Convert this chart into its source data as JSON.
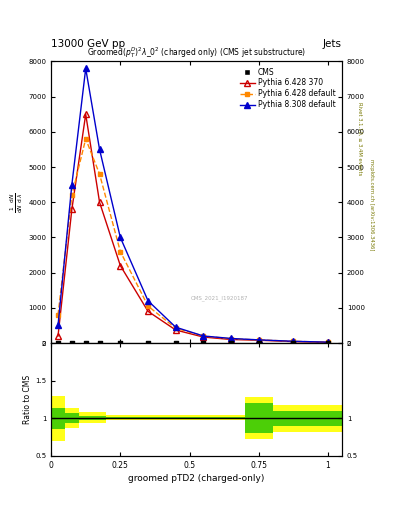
{
  "title_top": "13000 GeV pp",
  "title_right": "Jets",
  "plot_title": "Groomed$(p_T^D)^2\\lambda\\_0^2$ (charged only) (CMS jet substructure)",
  "xlabel": "groomed pTD2 (charged-only)",
  "right_label": "Rivet 3.1.10, ≥ 3.4M events",
  "right_label2": "mcplots.cern.ch [arXiv:1306.3436]",
  "watermark": "CMS_2021_I1920187",
  "p6_370_x": [
    0.025,
    0.075,
    0.125,
    0.175,
    0.25,
    0.35,
    0.45,
    0.55,
    0.65,
    0.75,
    0.875,
    1.0
  ],
  "p6_370_y": [
    200,
    3800,
    6500,
    4000,
    2200,
    900,
    370,
    170,
    100,
    80,
    40,
    20
  ],
  "p6_def_x": [
    0.025,
    0.075,
    0.125,
    0.175,
    0.25,
    0.35,
    0.45,
    0.55,
    0.65,
    0.75,
    0.875,
    1.0
  ],
  "p6_def_y": [
    800,
    4200,
    5800,
    4800,
    2600,
    1050,
    420,
    200,
    120,
    90,
    50,
    25
  ],
  "p8_def_x": [
    0.025,
    0.075,
    0.125,
    0.175,
    0.25,
    0.35,
    0.45,
    0.55,
    0.65,
    0.75,
    0.875,
    1.0
  ],
  "p8_def_y": [
    500,
    4500,
    7800,
    5500,
    3000,
    1200,
    450,
    200,
    130,
    90,
    50,
    25
  ],
  "cms_x": [
    0.025,
    0.075,
    0.125,
    0.175,
    0.25,
    0.35,
    0.45,
    0.55,
    0.65,
    0.75,
    0.875,
    1.0
  ],
  "cms_y": [
    0,
    0,
    0,
    0,
    0,
    0,
    0,
    0,
    0,
    0,
    0,
    0
  ],
  "ylim": [
    0,
    8000
  ],
  "xlim": [
    0.0,
    1.05
  ],
  "yticks": [
    0,
    1000,
    2000,
    3000,
    4000,
    5000,
    6000,
    7000,
    8000
  ],
  "color_cms": "#000000",
  "color_p6_370": "#cc0000",
  "color_p6_def": "#ff8800",
  "color_p8_def": "#0000cc",
  "band_yellow": "#ffff00",
  "band_green": "#00bb00",
  "ratio_ylim": [
    0.5,
    2.0
  ],
  "ratio_band_edges": [
    0.0,
    0.05,
    0.1,
    0.15,
    0.2,
    0.3,
    0.5,
    0.7,
    0.8,
    1.05
  ],
  "ratio_green_lo": [
    0.86,
    0.93,
    0.97,
    0.97,
    0.99,
    0.99,
    0.99,
    0.8,
    0.9
  ],
  "ratio_green_hi": [
    1.14,
    1.07,
    1.03,
    1.03,
    1.01,
    1.01,
    1.01,
    1.2,
    1.1
  ],
  "ratio_yellow_lo": [
    0.7,
    0.87,
    0.93,
    0.93,
    0.97,
    0.97,
    0.97,
    0.72,
    0.82
  ],
  "ratio_yellow_hi": [
    1.3,
    1.14,
    1.08,
    1.08,
    1.04,
    1.04,
    1.04,
    1.28,
    1.18
  ]
}
